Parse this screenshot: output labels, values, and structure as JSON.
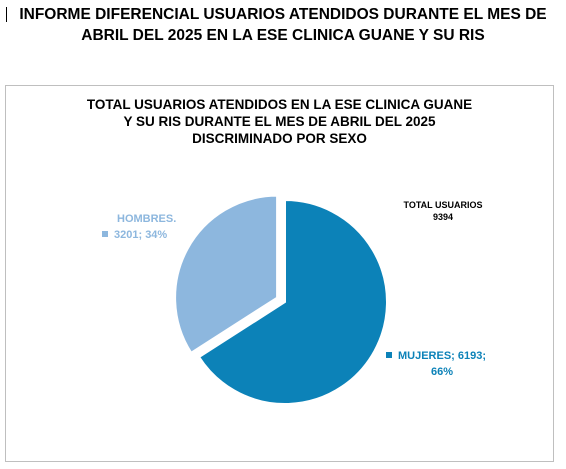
{
  "heading": {
    "line1": "INFORME DIFERENCIAL USUARIOS ATENDIDOS DURANTE EL MES DE",
    "line2": "ABRIL DEL 2025 EN LA ESE CLINICA GUANE Y SU RIS"
  },
  "chart_data": {
    "type": "pie",
    "title_lines": [
      "TOTAL USUARIOS ATENDIDOS EN LA ESE CLINICA GUANE",
      "Y SU RIS DURANTE EL MES DE ABRIL DEL 2025",
      "DISCRIMINADO POR SEXO"
    ],
    "total_label": "TOTAL USUARIOS",
    "total_value": "9394",
    "slices": [
      {
        "category": "HOMBRES.",
        "value": 3201,
        "percent": 34,
        "label_line1": "HOMBRES.",
        "label_line2": "3201; 34%",
        "color": "#8db7de",
        "exploded": true
      },
      {
        "category": "MUJERES",
        "value": 6193,
        "percent": 66,
        "label_line1": "MUJERES; 6193;",
        "label_line2": "66%",
        "color": "#0c82b8",
        "exploded": false
      }
    ],
    "start_angle_deg": 0,
    "direction": "clockwise"
  }
}
